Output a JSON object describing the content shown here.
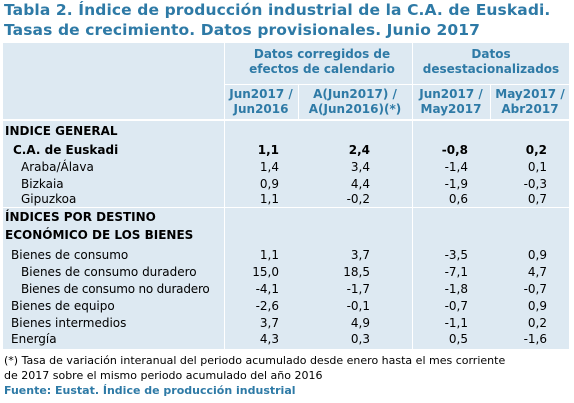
{
  "title": {
    "line1": "Tabla 2. Índice de producción industrial de la C.A. de Euskadi.",
    "line2": "Tasas de crecimiento. Datos provisionales. Junio 2017"
  },
  "header": {
    "group1": "Datos corregidos de efectos de calendario",
    "group2": "Datos desestacionalizados",
    "col1": "Jun2017 / Jun2016",
    "col2": "A(Jun2017) / A(Jun2016)(*)",
    "col3": "Jun2017 / May2017",
    "col4": "May2017 / Abr2017"
  },
  "sections": {
    "general": "INDICE GENERAL",
    "destino_line1": "ÍNDICES POR DESTINO",
    "destino_line2": "ECONÓMICO DE LOS BIENES"
  },
  "rows": [
    {
      "label": "C.A. de Euskadi",
      "values": [
        "1,1",
        "2,4",
        "-0,8",
        "0,2"
      ]
    },
    {
      "label": "Araba/Álava",
      "values": [
        "1,4",
        "3,4",
        "-1,4",
        "0,1"
      ]
    },
    {
      "label": "Bizkaia",
      "values": [
        "0,9",
        "4,4",
        "-1,9",
        "-0,3"
      ]
    },
    {
      "label": "Gipuzkoa",
      "values": [
        "1,1",
        "-0,2",
        "0,6",
        "0,7"
      ]
    },
    {
      "label": "Bienes de consumo",
      "values": [
        "1,1",
        "3,7",
        "-3,5",
        "0,9"
      ]
    },
    {
      "label": "Bienes de consumo duradero",
      "values": [
        "15,0",
        "18,5",
        "-7,1",
        "4,7"
      ]
    },
    {
      "label": "Bienes de consumo no duradero",
      "values": [
        "-4,1",
        "-1,7",
        "-1,8",
        "-0,7"
      ]
    },
    {
      "label": "Bienes de equipo",
      "values": [
        "-2,6",
        "-0,1",
        "-0,7",
        "0,9"
      ]
    },
    {
      "label": "Bienes intermedios",
      "values": [
        "3,7",
        "4,9",
        "-1,1",
        "0,2"
      ]
    },
    {
      "label": "Energía",
      "values": [
        "4,3",
        "0,3",
        "0,5",
        "-1,6"
      ]
    }
  ],
  "footnote": {
    "line1": "(*) Tasa de variación interanual del periodo acumulado desde enero hasta el mes corriente",
    "line2": "de 2017 sobre el mismo periodo acumulado del año 2016"
  },
  "source": "Fuente: Eustat. Índice de producción industrial"
}
